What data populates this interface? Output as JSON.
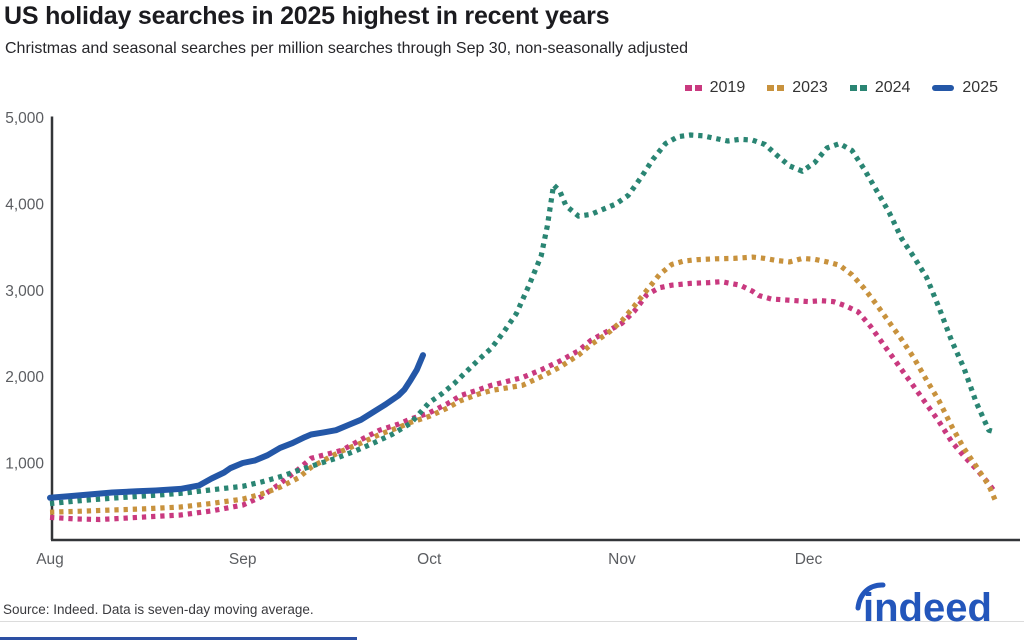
{
  "title": "US holiday searches in 2025 highest in recent years",
  "subtitle": "Christmas and seasonal searches per million searches through Sep 30, non-seasonally adjusted",
  "source_note": "Source: Indeed. Data is seven-day moving average.",
  "logo_text": "indeed",
  "colors": {
    "pink_2019": "#c9397f",
    "orange_2023": "#c8923d",
    "teal_2024": "#2a8573",
    "blue_2025": "#2457a7",
    "logo_blue": "#2356bb",
    "axis_line": "#333538",
    "axis_text": "#5b5d61"
  },
  "chart_data": {
    "type": "line",
    "title": "US holiday searches in 2025 highest in recent years",
    "subtitle": "Christmas and seasonal searches per million searches through Sep 30, non-seasonally adjusted",
    "ylabel": "Christmas and seasonal searches per million searches",
    "grid": false,
    "legend_position": "top-right",
    "x_axis": {
      "unit": "days since Aug 1",
      "tick_labels": [
        "Aug",
        "Sep",
        "Oct",
        "Nov",
        "Dec"
      ],
      "tick_days": [
        0,
        31,
        61,
        92,
        122
      ],
      "range_days": [
        0,
        152
      ]
    },
    "y_axis": {
      "ticks": [
        1000,
        2000,
        3000,
        4000,
        5000
      ],
      "tick_labels": [
        "1,000",
        "2,000",
        "3,000",
        "4,000",
        "5,000"
      ],
      "range": [
        110,
        5000
      ]
    },
    "series": [
      {
        "name": "2019",
        "color": "#c9397f",
        "style": "dotted",
        "points": [
          [
            0,
            370
          ],
          [
            4,
            352
          ],
          [
            8,
            345
          ],
          [
            12,
            360
          ],
          [
            16,
            378
          ],
          [
            21,
            398
          ],
          [
            26,
            445
          ],
          [
            31,
            512
          ],
          [
            34,
            610
          ],
          [
            37,
            760
          ],
          [
            40,
            930
          ],
          [
            42,
            1055
          ],
          [
            45,
            1110
          ],
          [
            47,
            1150
          ],
          [
            50,
            1270
          ],
          [
            53,
            1380
          ],
          [
            56,
            1450
          ],
          [
            58,
            1510
          ],
          [
            61,
            1580
          ],
          [
            64,
            1690
          ],
          [
            66,
            1780
          ],
          [
            69,
            1850
          ],
          [
            71,
            1900
          ],
          [
            76,
            1990
          ],
          [
            79,
            2080
          ],
          [
            82,
            2180
          ],
          [
            85,
            2300
          ],
          [
            87,
            2420
          ],
          [
            90,
            2540
          ],
          [
            92,
            2620
          ],
          [
            94,
            2760
          ],
          [
            96,
            2950
          ],
          [
            98,
            3030
          ],
          [
            100,
            3060
          ],
          [
            103,
            3080
          ],
          [
            106,
            3090
          ],
          [
            108,
            3100
          ],
          [
            111,
            3060
          ],
          [
            113,
            2990
          ],
          [
            114,
            2940
          ],
          [
            116,
            2900
          ],
          [
            118,
            2890
          ],
          [
            120,
            2880
          ],
          [
            122,
            2870
          ],
          [
            124,
            2880
          ],
          [
            126,
            2870
          ],
          [
            128,
            2820
          ],
          [
            130,
            2750
          ],
          [
            132,
            2580
          ],
          [
            134,
            2380
          ],
          [
            136,
            2180
          ],
          [
            137,
            2080
          ],
          [
            139,
            1880
          ],
          [
            141,
            1680
          ],
          [
            143,
            1480
          ],
          [
            145,
            1250
          ],
          [
            147,
            1080
          ],
          [
            149,
            930
          ],
          [
            151,
            760
          ],
          [
            152,
            660
          ]
        ]
      },
      {
        "name": "2023",
        "color": "#c8923d",
        "style": "dotted",
        "points": [
          [
            0,
            430
          ],
          [
            5,
            442
          ],
          [
            10,
            455
          ],
          [
            15,
            468
          ],
          [
            21,
            490
          ],
          [
            26,
            532
          ],
          [
            31,
            582
          ],
          [
            34,
            640
          ],
          [
            37,
            720
          ],
          [
            40,
            830
          ],
          [
            42,
            950
          ],
          [
            45,
            1070
          ],
          [
            47,
            1140
          ],
          [
            50,
            1230
          ],
          [
            53,
            1330
          ],
          [
            56,
            1410
          ],
          [
            58,
            1470
          ],
          [
            61,
            1540
          ],
          [
            64,
            1640
          ],
          [
            66,
            1720
          ],
          [
            69,
            1800
          ],
          [
            71,
            1840
          ],
          [
            76,
            1900
          ],
          [
            79,
            2000
          ],
          [
            82,
            2110
          ],
          [
            85,
            2250
          ],
          [
            87,
            2370
          ],
          [
            90,
            2520
          ],
          [
            92,
            2650
          ],
          [
            94,
            2820
          ],
          [
            96,
            3000
          ],
          [
            98,
            3180
          ],
          [
            100,
            3300
          ],
          [
            102,
            3340
          ],
          [
            104,
            3355
          ],
          [
            107,
            3365
          ],
          [
            110,
            3370
          ],
          [
            113,
            3385
          ],
          [
            115,
            3370
          ],
          [
            117,
            3345
          ],
          [
            119,
            3330
          ],
          [
            121,
            3370
          ],
          [
            123,
            3360
          ],
          [
            125,
            3330
          ],
          [
            127,
            3290
          ],
          [
            129,
            3180
          ],
          [
            131,
            3020
          ],
          [
            133,
            2830
          ],
          [
            135,
            2630
          ],
          [
            137,
            2430
          ],
          [
            139,
            2210
          ],
          [
            141,
            1960
          ],
          [
            143,
            1720
          ],
          [
            145,
            1430
          ],
          [
            147,
            1170
          ],
          [
            149,
            960
          ],
          [
            151,
            740
          ],
          [
            152,
            575
          ]
        ]
      },
      {
        "name": "2024",
        "color": "#2a8573",
        "style": "dotted",
        "points": [
          [
            0,
            530
          ],
          [
            5,
            565
          ],
          [
            10,
            592
          ],
          [
            14,
            612
          ],
          [
            18,
            632
          ],
          [
            22,
            655
          ],
          [
            26,
            690
          ],
          [
            31,
            730
          ],
          [
            34,
            780
          ],
          [
            37,
            840
          ],
          [
            40,
            915
          ],
          [
            43,
            985
          ],
          [
            46,
            1055
          ],
          [
            49,
            1135
          ],
          [
            52,
            1230
          ],
          [
            55,
            1330
          ],
          [
            58,
            1460
          ],
          [
            61,
            1700
          ],
          [
            63,
            1800
          ],
          [
            65,
            1920
          ],
          [
            67,
            2060
          ],
          [
            69,
            2200
          ],
          [
            71,
            2330
          ],
          [
            73,
            2520
          ],
          [
            75,
            2730
          ],
          [
            77,
            3050
          ],
          [
            79,
            3400
          ],
          [
            80,
            3750
          ],
          [
            81,
            4220
          ],
          [
            82,
            4150
          ],
          [
            83,
            3980
          ],
          [
            85,
            3860
          ],
          [
            87,
            3880
          ],
          [
            89,
            3940
          ],
          [
            91,
            4000
          ],
          [
            93,
            4100
          ],
          [
            95,
            4300
          ],
          [
            97,
            4520
          ],
          [
            99,
            4700
          ],
          [
            101,
            4780
          ],
          [
            103,
            4800
          ],
          [
            105,
            4790
          ],
          [
            107,
            4760
          ],
          [
            109,
            4730
          ],
          [
            111,
            4750
          ],
          [
            113,
            4740
          ],
          [
            115,
            4690
          ],
          [
            117,
            4560
          ],
          [
            119,
            4440
          ],
          [
            121,
            4380
          ],
          [
            123,
            4480
          ],
          [
            125,
            4650
          ],
          [
            127,
            4700
          ],
          [
            129,
            4620
          ],
          [
            131,
            4400
          ],
          [
            133,
            4150
          ],
          [
            135,
            3900
          ],
          [
            137,
            3600
          ],
          [
            139,
            3380
          ],
          [
            141,
            3150
          ],
          [
            143,
            2800
          ],
          [
            145,
            2420
          ],
          [
            147,
            2100
          ],
          [
            149,
            1700
          ],
          [
            151,
            1380
          ],
          [
            152,
            1360
          ]
        ]
      },
      {
        "name": "2025",
        "color": "#2457a7",
        "style": "solid",
        "points": [
          [
            0,
            597
          ],
          [
            3,
            615
          ],
          [
            7,
            640
          ],
          [
            10,
            658
          ],
          [
            14,
            672
          ],
          [
            17,
            682
          ],
          [
            21,
            700
          ],
          [
            24,
            740
          ],
          [
            26,
            820
          ],
          [
            28,
            890
          ],
          [
            29,
            940
          ],
          [
            31,
            1000
          ],
          [
            33,
            1030
          ],
          [
            35,
            1090
          ],
          [
            37,
            1175
          ],
          [
            39,
            1230
          ],
          [
            41,
            1300
          ],
          [
            42,
            1330
          ],
          [
            44,
            1355
          ],
          [
            46,
            1380
          ],
          [
            48,
            1440
          ],
          [
            50,
            1500
          ],
          [
            52,
            1590
          ],
          [
            54,
            1680
          ],
          [
            56,
            1780
          ],
          [
            57,
            1850
          ],
          [
            58,
            1960
          ],
          [
            59,
            2080
          ],
          [
            60,
            2250
          ]
        ]
      }
    ]
  }
}
